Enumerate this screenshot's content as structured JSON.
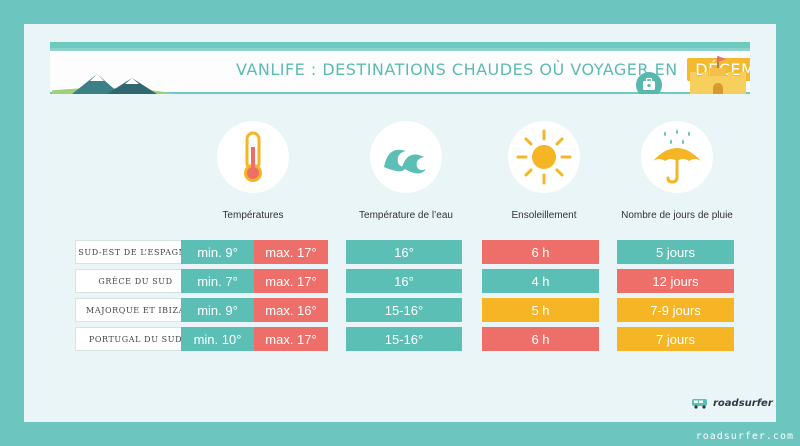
{
  "banner": {
    "title_prefix": "Vanlife : destinations chaudes où voyager en",
    "title_month": "Décembre"
  },
  "columns": [
    {
      "icon": "thermometer-icon",
      "label": "Températures"
    },
    {
      "icon": "wave-icon",
      "label": "Température de l’eau"
    },
    {
      "icon": "sun-icon",
      "label": "Ensoleillement"
    },
    {
      "icon": "umbrella-rain-icon",
      "label": "Nombre de jours de pluie"
    }
  ],
  "rows": [
    {
      "label": "Sud-est de l’Espagne",
      "temp_min": "min. 9°",
      "temp_max": "max. 17°",
      "water": "16°",
      "sun": "6 h",
      "rain": "5 jours"
    },
    {
      "label": "Grèce du sud",
      "temp_min": "min. 7°",
      "temp_max": "max. 17°",
      "water": "16°",
      "sun": "4 h",
      "rain": "12 jours"
    },
    {
      "label": "Majorque et Ibiza",
      "temp_min": "min. 9°",
      "temp_max": "max. 16°",
      "water": "15-16°",
      "sun": "5 h",
      "rain": "7-9 jours"
    },
    {
      "label": "Portugal du sud",
      "temp_min": "min. 10°",
      "temp_max": "max. 17°",
      "water": "15-16°",
      "sun": "6 h",
      "rain": "7 jours"
    }
  ],
  "colors": {
    "teal": "#5cbfb6",
    "red": "#ee6f6a",
    "yellow": "#f6b524",
    "frame": "#6cc5bf"
  },
  "logo": {
    "text": "roadsurfer"
  },
  "watermark": "roadsurfer.com"
}
